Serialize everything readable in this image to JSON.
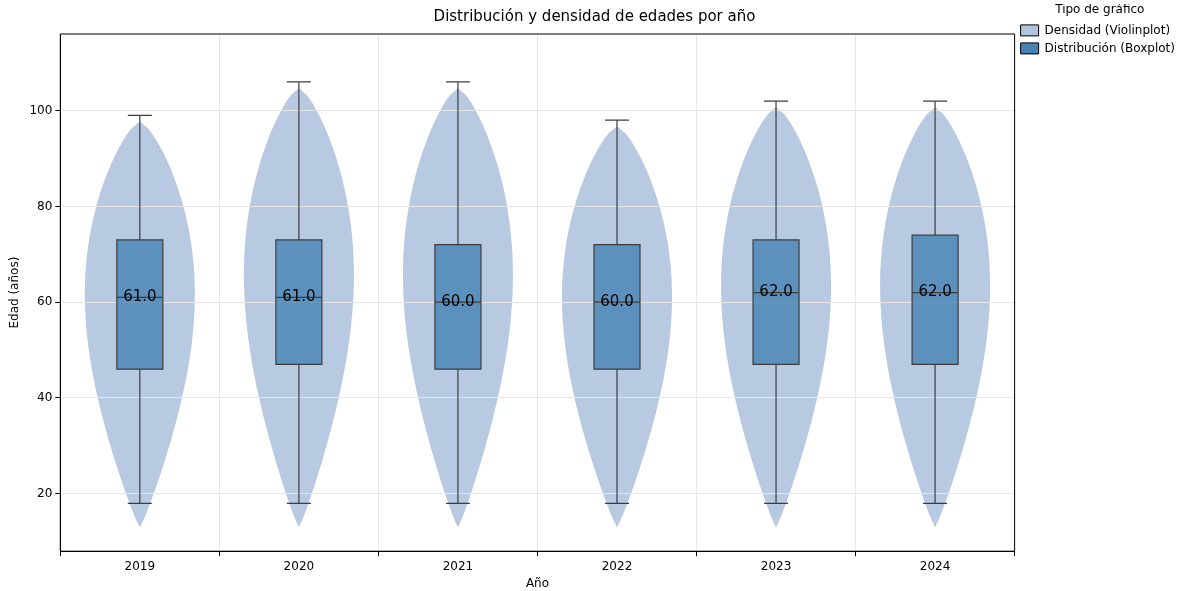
{
  "chart_data": {
    "type": "box",
    "title": "Distribución y densidad de edades por año",
    "xlabel": "Año",
    "ylabel": "Edad (años)",
    "legend_title": "Tipo de gráfico",
    "legend": "top right",
    "grid": true,
    "categories": [
      "2019",
      "2020",
      "2021",
      "2022",
      "2023",
      "2024"
    ],
    "ylim": [
      8,
      116
    ],
    "yticks": [
      20,
      40,
      60,
      80,
      100
    ],
    "series": [
      {
        "name": "Densidad (Violinplot)",
        "type": "other",
        "color": "#b0c4de",
        "values": [
          null,
          null,
          null,
          null,
          null,
          null
        ]
      },
      {
        "name": "Distribución (Boxplot)",
        "color": "#4682b4",
        "value_labels": [
          "61.0",
          "61.0",
          "60.0",
          "60.0",
          "62.0",
          "62.0"
        ],
        "boxes": [
          {
            "low": 18,
            "q1": 46,
            "median": 61,
            "q3": 73,
            "high": 99
          },
          {
            "low": 18,
            "q1": 47,
            "median": 61,
            "q3": 73,
            "high": 106
          },
          {
            "low": 18,
            "q1": 46,
            "median": 60,
            "q3": 72,
            "high": 106
          },
          {
            "low": 18,
            "q1": 46,
            "median": 60,
            "q3": 72,
            "high": 98
          },
          {
            "low": 18,
            "q1": 47,
            "median": 62,
            "q3": 73,
            "high": 102
          },
          {
            "low": 18,
            "q1": 47,
            "median": 62,
            "q3": 74,
            "high": 102
          }
        ]
      }
    ]
  }
}
